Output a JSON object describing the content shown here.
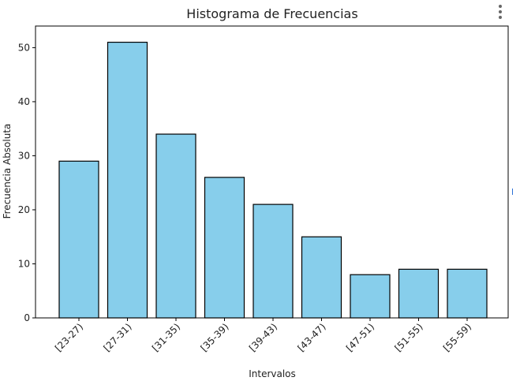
{
  "chart_data": {
    "type": "bar",
    "title": "Histograma de Frecuencias",
    "xlabel": "Intervalos",
    "ylabel": "Frecuencia Absoluta",
    "categories": [
      "[23-27)",
      "[27-31)",
      "[31-35)",
      "[35-39)",
      "[39-43)",
      "[43-47)",
      "[47-51)",
      "[51-55)",
      "[55-59)"
    ],
    "values": [
      29,
      51,
      34,
      26,
      21,
      15,
      8,
      9,
      9
    ],
    "ylim": [
      0,
      54
    ],
    "yticks": [
      0,
      10,
      20,
      30,
      40,
      50
    ],
    "grid": false,
    "bar_color": "#87ceeb",
    "edge_color": "#000000"
  },
  "menu": {
    "icon": "kebab-menu-icon"
  }
}
